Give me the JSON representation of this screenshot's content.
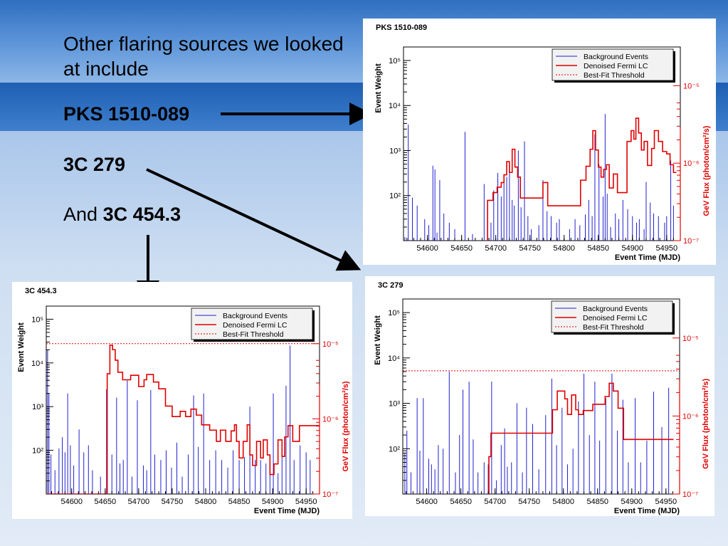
{
  "slide": {
    "intro": "Other flaring sources we looked at include",
    "source1": "PKS 1510-089",
    "source2": "3C 279",
    "source3_prefix": "And",
    "source3": "3C 454.3"
  },
  "colors": {
    "background_events": "#2020d0",
    "denoised_lc": "#e00000",
    "threshold": "#e00000",
    "axis": "#000000",
    "right_axis": "#e00000"
  },
  "chart_data": [
    {
      "type": "line",
      "title": "PKS 1510-089",
      "xlabel": "Event Time (MJD)",
      "ylabel": "Event Weight",
      "y2label": "GeV Flux (photon/cm²/s)",
      "xlim": [
        54565,
        54970
      ],
      "ylim_log10": [
        1.0,
        5.3
      ],
      "y2lim_log10": [
        -7,
        -4.5
      ],
      "xticks": [
        "54600",
        "54650",
        "54700",
        "54750",
        "54800",
        "54850",
        "54900",
        "54950"
      ],
      "yticks": [
        "10²",
        "10³",
        "10⁴",
        "10⁵"
      ],
      "y2ticks": [
        "10⁻⁷",
        "10⁻⁶",
        "10⁻⁵"
      ],
      "legend": [
        "Background Events",
        "Denoised Fermi LC",
        "Best-Fit Threshold"
      ],
      "legend_position": "top-right",
      "threshold": null,
      "events": [
        [
          54567,
          12
        ],
        [
          54572,
          3800
        ],
        [
          54578,
          90
        ],
        [
          54585,
          60
        ],
        [
          54596,
          30
        ],
        [
          54602,
          22
        ],
        [
          54608,
          460
        ],
        [
          54611,
          380
        ],
        [
          54614,
          15
        ],
        [
          54618,
          220
        ],
        [
          54624,
          40
        ],
        [
          54632,
          25
        ],
        [
          54640,
          18
        ],
        [
          54655,
          2600
        ],
        [
          54666,
          14
        ],
        [
          54683,
          180
        ],
        [
          54688,
          60
        ],
        [
          54693,
          25
        ],
        [
          54697,
          130
        ],
        [
          54703,
          320
        ],
        [
          54708,
          95
        ],
        [
          54712,
          230
        ],
        [
          54716,
          260
        ],
        [
          54720,
          500
        ],
        [
          54724,
          80
        ],
        [
          54727,
          60
        ],
        [
          54733,
          1000
        ],
        [
          54737,
          55
        ],
        [
          54742,
          1600
        ],
        [
          54747,
          35
        ],
        [
          54752,
          18
        ],
        [
          54763,
          22
        ],
        [
          54769,
          220
        ],
        [
          54775,
          45
        ],
        [
          54781,
          35
        ],
        [
          54789,
          25
        ],
        [
          54793,
          30
        ],
        [
          54808,
          18
        ],
        [
          54816,
          30
        ],
        [
          54823,
          22
        ],
        [
          54831,
          38
        ],
        [
          54836,
          80
        ],
        [
          54841,
          35
        ],
        [
          54845,
          2300
        ],
        [
          54851,
          500
        ],
        [
          54857,
          95
        ],
        [
          54860,
          6500
        ],
        [
          54863,
          110
        ],
        [
          54868,
          20
        ],
        [
          54875,
          40
        ],
        [
          54880,
          30
        ],
        [
          54886,
          80
        ],
        [
          54893,
          50
        ],
        [
          54900,
          35
        ],
        [
          54906,
          25
        ],
        [
          54910,
          30
        ],
        [
          54917,
          18
        ],
        [
          54920,
          200
        ],
        [
          54926,
          70
        ],
        [
          54931,
          40
        ],
        [
          54938,
          35
        ],
        [
          54947,
          25
        ],
        [
          54950,
          35
        ],
        [
          54956,
          600
        ],
        [
          54960,
          60
        ]
      ],
      "lc": [
        [
          54688,
          -6.48
        ],
        [
          54696,
          -6.38
        ],
        [
          54702,
          -6.31
        ],
        [
          54708,
          -6.25
        ],
        [
          54712,
          -6.15
        ],
        [
          54716,
          -5.98
        ],
        [
          54720,
          -6.12
        ],
        [
          54724,
          -5.82
        ],
        [
          54728,
          -6.05
        ],
        [
          54732,
          -6.18
        ],
        [
          54736,
          -6.45
        ],
        [
          54762,
          -6.45
        ],
        [
          54769,
          -6.25
        ],
        [
          54776,
          -6.55
        ],
        [
          54818,
          -6.55
        ],
        [
          54824,
          -6.22
        ],
        [
          54832,
          -6.04
        ],
        [
          54838,
          -5.82
        ],
        [
          54842,
          -5.58
        ],
        [
          54846,
          -5.83
        ],
        [
          54850,
          -6.05
        ],
        [
          54854,
          -6.18
        ],
        [
          54858,
          -6.08
        ],
        [
          54862,
          -6.02
        ],
        [
          54866,
          -6.32
        ],
        [
          54872,
          -6.14
        ],
        [
          54878,
          -6.38
        ],
        [
          54892,
          -5.72
        ],
        [
          54898,
          -5.58
        ],
        [
          54902,
          -5.69
        ],
        [
          54905,
          -5.42
        ],
        [
          54909,
          -5.61
        ],
        [
          54913,
          -5.83
        ],
        [
          54917,
          -5.72
        ],
        [
          54922,
          -6.03
        ],
        [
          54928,
          -5.81
        ],
        [
          54932,
          -5.58
        ],
        [
          54938,
          -5.72
        ],
        [
          54944,
          -5.85
        ],
        [
          54950,
          -5.88
        ],
        [
          54955,
          -6.02
        ],
        [
          54960,
          -6.12
        ]
      ]
    },
    {
      "type": "line",
      "title": "3C 279",
      "xlabel": "Event Time (MJD)",
      "ylabel": "Event Weight",
      "y2label": "GeV Flux (photon/cm²/s)",
      "xlim": [
        54565,
        54970
      ],
      "ylim_log10": [
        1.0,
        5.3
      ],
      "y2lim_log10": [
        -7,
        -4.5
      ],
      "xticks": [
        "54600",
        "54650",
        "54700",
        "54750",
        "54800",
        "54850",
        "54900",
        "54950"
      ],
      "yticks": [
        "10²",
        "10³",
        "10⁴",
        "10⁵"
      ],
      "y2ticks": [
        "10⁻⁷",
        "10⁻⁶",
        "10⁻⁵"
      ],
      "legend": [
        "Background Events",
        "Denoised Fermi LC",
        "Best-Fit Threshold"
      ],
      "legend_position": "top-right",
      "threshold": -5.42,
      "events": [
        [
          54568,
          80
        ],
        [
          54571,
          250
        ],
        [
          54577,
          30
        ],
        [
          54586,
          1300
        ],
        [
          54590,
          90
        ],
        [
          54595,
          1300
        ],
        [
          54603,
          60
        ],
        [
          54607,
          45
        ],
        [
          54612,
          35
        ],
        [
          54617,
          120
        ],
        [
          54624,
          100
        ],
        [
          54633,
          5000
        ],
        [
          54642,
          30
        ],
        [
          54648,
          200
        ],
        [
          54653,
          2000
        ],
        [
          54662,
          3000
        ],
        [
          54668,
          160
        ],
        [
          54675,
          30
        ],
        [
          54684,
          50
        ],
        [
          54690,
          45
        ],
        [
          54695,
          3000
        ],
        [
          54702,
          20
        ],
        [
          54709,
          120
        ],
        [
          54714,
          280
        ],
        [
          54718,
          40
        ],
        [
          54724,
          50
        ],
        [
          54732,
          1000
        ],
        [
          54740,
          30
        ],
        [
          54746,
          800
        ],
        [
          54755,
          350
        ],
        [
          54764,
          35
        ],
        [
          54774,
          550
        ],
        [
          54783,
          3500
        ],
        [
          54790,
          120
        ],
        [
          54798,
          800
        ],
        [
          54806,
          45
        ],
        [
          54814,
          100
        ],
        [
          54822,
          1100
        ],
        [
          54830,
          4500
        ],
        [
          54838,
          200
        ],
        [
          54846,
          3000
        ],
        [
          54853,
          150
        ],
        [
          54862,
          1300
        ],
        [
          54871,
          4500
        ],
        [
          54879,
          250
        ],
        [
          54887,
          1200
        ],
        [
          54895,
          50
        ],
        [
          54905,
          1300
        ],
        [
          54913,
          50
        ],
        [
          54922,
          150
        ],
        [
          54932,
          1800
        ],
        [
          54944,
          300
        ],
        [
          54954,
          2200
        ]
      ],
      "lc": [
        [
          54691,
          -6.52
        ],
        [
          54694,
          -6.22
        ],
        [
          54764,
          -6.22
        ],
        [
          54784,
          -5.92
        ],
        [
          54791,
          -5.68
        ],
        [
          54802,
          -5.78
        ],
        [
          54806,
          -5.98
        ],
        [
          54812,
          -5.73
        ],
        [
          54818,
          -5.92
        ],
        [
          54822,
          -5.98
        ],
        [
          54829,
          -5.93
        ],
        [
          54843,
          -5.85
        ],
        [
          54861,
          -5.75
        ],
        [
          54867,
          -5.58
        ],
        [
          54873,
          -5.68
        ],
        [
          54880,
          -5.9
        ],
        [
          54888,
          -6.3
        ],
        [
          54957,
          -6.3
        ]
      ]
    },
    {
      "type": "line",
      "title": "3C 454.3",
      "xlabel": "Event Time (MJD)",
      "ylabel": "Event Weight",
      "y2label": "GeV Flux (photon/cm²/s)",
      "xlim": [
        54562,
        54970
      ],
      "ylim_log10": [
        1.0,
        5.3
      ],
      "y2lim_log10": [
        -7,
        -4.5
      ],
      "xticks": [
        "54600",
        "54650",
        "54700",
        "54750",
        "54800",
        "54850",
        "54900",
        "54950"
      ],
      "yticks": [
        "10²",
        "10³",
        "10⁴",
        "10⁵"
      ],
      "y2ticks": [
        "10⁻⁷",
        "10⁻⁶",
        "10⁻⁵"
      ],
      "legend": [
        "Background Events",
        "Denoised Fermi LC",
        "Best-Fit Threshold"
      ],
      "legend_position": "top-right",
      "threshold": -5.0,
      "events": [
        [
          54564,
          20000
        ],
        [
          54566,
          2000
        ],
        [
          54569,
          80
        ],
        [
          54575,
          35
        ],
        [
          54581,
          110
        ],
        [
          54586,
          200
        ],
        [
          54590,
          90
        ],
        [
          54594,
          2000
        ],
        [
          54598,
          130
        ],
        [
          54603,
          45
        ],
        [
          54611,
          300
        ],
        [
          54618,
          90
        ],
        [
          54625,
          130
        ],
        [
          54631,
          35
        ],
        [
          54643,
          25
        ],
        [
          54652,
          2500
        ],
        [
          54660,
          80
        ],
        [
          54667,
          1600
        ],
        [
          54672,
          50
        ],
        [
          54677,
          60
        ],
        [
          54683,
          4000
        ],
        [
          54690,
          25
        ],
        [
          54698,
          1400
        ],
        [
          54707,
          45
        ],
        [
          54712,
          35
        ],
        [
          54718,
          2400
        ],
        [
          54724,
          80
        ],
        [
          54733,
          60
        ],
        [
          54741,
          100
        ],
        [
          54749,
          40
        ],
        [
          54757,
          150
        ],
        [
          54765,
          25
        ],
        [
          54774,
          80
        ],
        [
          54782,
          1800
        ],
        [
          54789,
          120
        ],
        [
          54797,
          2000
        ],
        [
          54806,
          60
        ],
        [
          54815,
          100
        ],
        [
          54824,
          60
        ],
        [
          54833,
          40
        ],
        [
          54841,
          100
        ],
        [
          54850,
          60
        ],
        [
          54858,
          70
        ],
        [
          54866,
          1000
        ],
        [
          54874,
          60
        ],
        [
          54882,
          60
        ],
        [
          54890,
          50
        ],
        [
          54896,
          50
        ],
        [
          54901,
          2000
        ],
        [
          54908,
          30
        ],
        [
          54914,
          130
        ],
        [
          54920,
          3000
        ],
        [
          54926,
          25000
        ],
        [
          54932,
          60
        ],
        [
          54941,
          130
        ],
        [
          54950,
          90
        ],
        [
          54956,
          60
        ]
      ],
      "lc": [
        [
          54562,
          -7.0
        ],
        [
          54650,
          -7.0
        ],
        [
          54653,
          -5.4
        ],
        [
          54657,
          -5.02
        ],
        [
          54661,
          -5.08
        ],
        [
          54665,
          -5.22
        ],
        [
          54669,
          -5.38
        ],
        [
          54676,
          -5.48
        ],
        [
          54688,
          -5.42
        ],
        [
          54700,
          -5.57
        ],
        [
          54708,
          -5.48
        ],
        [
          54712,
          -5.41
        ],
        [
          54722,
          -5.51
        ],
        [
          54730,
          -5.6
        ],
        [
          54740,
          -5.83
        ],
        [
          54750,
          -5.97
        ],
        [
          54762,
          -5.9
        ],
        [
          54770,
          -5.97
        ],
        [
          54778,
          -5.87
        ],
        [
          54786,
          -5.95
        ],
        [
          54794,
          -6.08
        ],
        [
          54806,
          -6.15
        ],
        [
          54816,
          -6.3
        ],
        [
          54822,
          -6.15
        ],
        [
          54830,
          -6.3
        ],
        [
          54838,
          -6.16
        ],
        [
          54843,
          -6.08
        ],
        [
          54846,
          -6.3
        ],
        [
          54850,
          -6.52
        ],
        [
          54856,
          -6.3
        ],
        [
          54862,
          -6.08
        ],
        [
          54866,
          -6.48
        ],
        [
          54870,
          -6.62
        ],
        [
          54876,
          -6.3
        ],
        [
          54882,
          -6.52
        ],
        [
          54886,
          -6.28
        ],
        [
          54892,
          -6.48
        ],
        [
          54896,
          -6.74
        ],
        [
          54902,
          -6.6
        ],
        [
          54908,
          -6.28
        ],
        [
          54914,
          -6.5
        ],
        [
          54918,
          -6.24
        ],
        [
          54923,
          -6.09
        ],
        [
          54930,
          -6.3
        ],
        [
          54940,
          -6.09
        ],
        [
          54955,
          -6.09
        ],
        [
          54965,
          -6.09
        ]
      ]
    }
  ]
}
